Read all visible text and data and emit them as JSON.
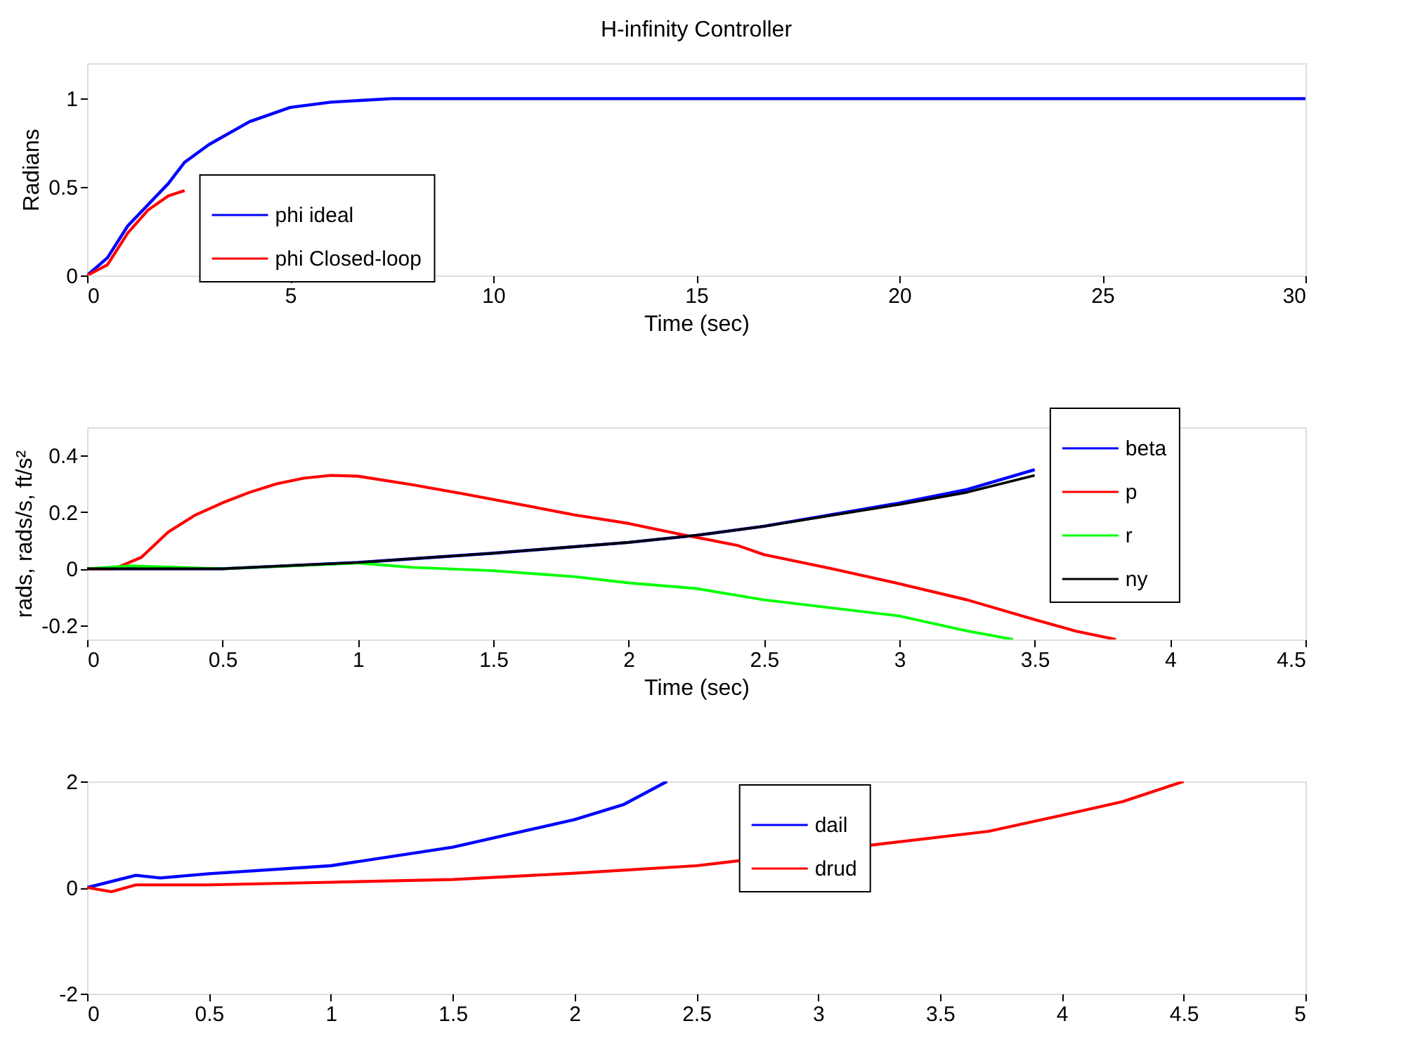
{
  "chart_data": [
    {
      "type": "line",
      "title": "H-infinity Controller",
      "xlabel": "Time (sec)",
      "ylabel": "Radians",
      "xlim": [
        0,
        30
      ],
      "xticks": [
        0,
        5,
        10,
        15,
        20,
        25,
        30
      ],
      "ylim": [
        0,
        1.2
      ],
      "yticks": [
        0,
        0.5,
        1
      ],
      "grid": false,
      "legend": "bottom left",
      "marker": "none",
      "line_style": "solid",
      "series": [
        {
          "name": "phi ideal",
          "color": "#0000ff",
          "x": [
            0,
            0.5,
            1,
            2,
            2.4,
            3,
            4,
            5,
            6,
            7.5,
            30
          ],
          "values": [
            0,
            0.1,
            0.28,
            0.52,
            0.64,
            0.74,
            0.87,
            0.95,
            0.98,
            1,
            1
          ]
        },
        {
          "name": "phi Closed-loop",
          "color": "#ff0000",
          "x": [
            0,
            0.5,
            1,
            1.5,
            2,
            2.4
          ],
          "values": [
            0,
            0.06,
            0.24,
            0.37,
            0.45,
            0.48
          ]
        }
      ]
    },
    {
      "type": "line",
      "xlabel": "Time (sec)",
      "ylabel": "rads, rads/s, ft/s²",
      "xlim": [
        0,
        4.5
      ],
      "xticks": [
        0,
        0.5,
        1,
        1.5,
        2,
        2.5,
        3,
        3.5,
        4,
        4.5
      ],
      "ylim": [
        -0.25,
        0.5
      ],
      "yticks": [
        -0.2,
        0,
        0.2,
        0.4
      ],
      "grid": false,
      "legend": "top right",
      "marker": "none",
      "line_style": "solid",
      "series": [
        {
          "name": "beta",
          "color": "#0000ff",
          "x": [
            0,
            0.5,
            1,
            1.5,
            2,
            2.25,
            2.5,
            3,
            3.25,
            3.5
          ],
          "values": [
            0,
            0,
            0.022,
            0.055,
            0.093,
            0.118,
            0.15,
            0.232,
            0.28,
            0.35
          ]
        },
        {
          "name": "p",
          "color": "#ff0000",
          "x": [
            0,
            0.1,
            0.2,
            0.3,
            0.4,
            0.5,
            0.6,
            0.7,
            0.8,
            0.9,
            1,
            1.2,
            1.4,
            1.6,
            1.8,
            2,
            2.2,
            2.4,
            2.5,
            2.75,
            3,
            3.25,
            3.5,
            3.65,
            3.8
          ],
          "values": [
            0,
            0,
            0.04,
            0.13,
            0.19,
            0.233,
            0.27,
            0.3,
            0.32,
            0.33,
            0.327,
            0.297,
            0.263,
            0.227,
            0.19,
            0.16,
            0.12,
            0.083,
            0.05,
            0,
            -0.053,
            -0.11,
            -0.18,
            -0.22,
            -0.25
          ]
        },
        {
          "name": "r",
          "color": "#00ff00",
          "x": [
            0,
            0.15,
            0.5,
            1,
            1.2,
            1.5,
            1.8,
            2,
            2.25,
            2.5,
            3,
            3.25,
            3.42
          ],
          "values": [
            0,
            0.01,
            0,
            0.02,
            0.005,
            -0.007,
            -0.028,
            -0.05,
            -0.07,
            -0.11,
            -0.167,
            -0.22,
            -0.25
          ]
        },
        {
          "name": "ny",
          "color": "#000000",
          "x": [
            0,
            0.5,
            1,
            1.5,
            2,
            2.25,
            2.5,
            3,
            3.25,
            3.5
          ],
          "values": [
            0,
            0,
            0.022,
            0.055,
            0.093,
            0.118,
            0.15,
            0.227,
            0.27,
            0.33
          ]
        }
      ]
    },
    {
      "type": "line",
      "xlim": [
        0,
        5
      ],
      "xticks": [
        0,
        0.5,
        1,
        1.5,
        2,
        2.5,
        3,
        3.5,
        4,
        4.5,
        5
      ],
      "ylim": [
        -2,
        2
      ],
      "yticks": [
        -2,
        0,
        2
      ],
      "grid": false,
      "legend": "top",
      "marker": "none",
      "line_style": "solid",
      "series": [
        {
          "name": "dail",
          "color": "#0000ff",
          "x": [
            0,
            0.2,
            0.3,
            0.5,
            1,
            1.5,
            2,
            2.2,
            2.38
          ],
          "values": [
            0,
            0.23,
            0.18,
            0.26,
            0.41,
            0.76,
            1.28,
            1.56,
            2
          ]
        },
        {
          "name": "drud",
          "color": "#ff0000",
          "x": [
            0,
            0.1,
            0.2,
            0.5,
            1,
            1.5,
            2,
            2.5,
            3.7,
            4,
            4.25,
            4.5
          ],
          "values": [
            0,
            -0.08,
            0.05,
            0.05,
            0.1,
            0.15,
            0.27,
            0.41,
            1.06,
            1.36,
            1.62,
            2
          ]
        }
      ]
    }
  ]
}
